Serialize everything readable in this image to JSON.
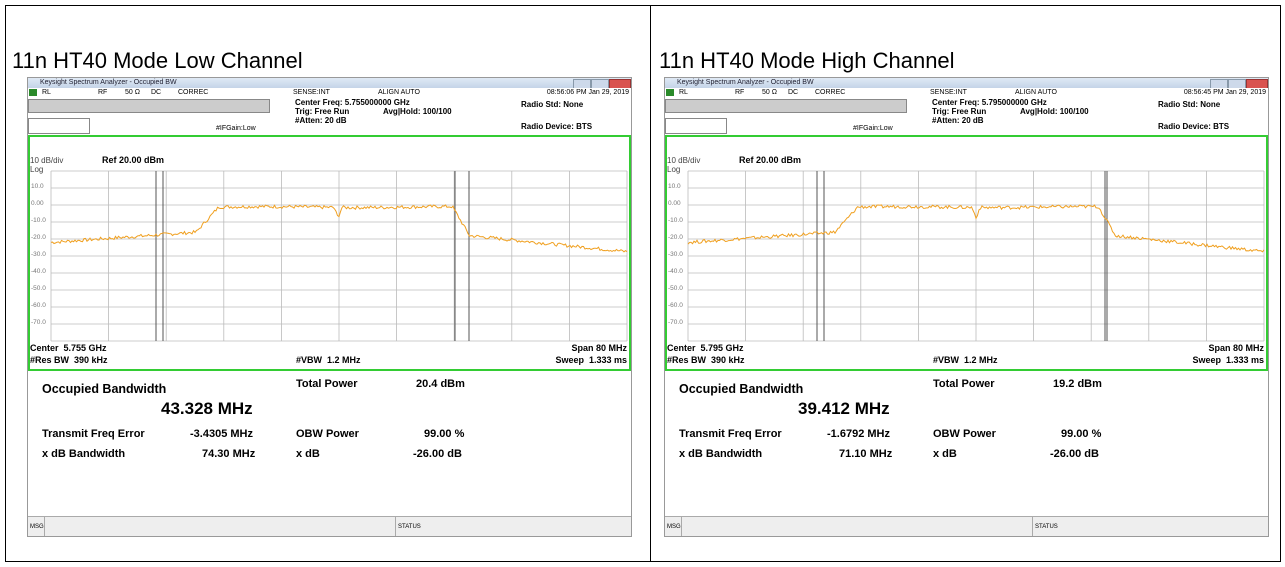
{
  "panels": [
    {
      "caption": "11n HT40 Mode Low Channel",
      "window_title": "Keysight Spectrum Analyzer - Occupied BW",
      "toolbar": [
        "RL",
        "RF",
        "50 Ω",
        "DC",
        "CORREC",
        "SENSE:INT",
        "ALIGN AUTO"
      ],
      "timestamp": "08:56:06 PM Jan 29, 2019",
      "center_freq": "Center Freq: 5.755000000 GHz",
      "trig": "Trig: Free Run",
      "avg": "Avg|Hold: 100/100",
      "atten": "#Atten: 20 dB",
      "ifgain": "#IFGain:Low",
      "radio_std": "Radio Std: None",
      "radio_device": "Radio Device: BTS",
      "scale": "10 dB/div",
      "ref": "Ref 20.00 dBm",
      "log": "Log",
      "y_labels": [
        "10.0",
        "0.00",
        "-10.0",
        "-20.0",
        "-30.0",
        "-40.0",
        "-50.0",
        "-60.0",
        "-70.0"
      ],
      "center": "Center  5.755 GHz",
      "span": "Span 80 MHz",
      "res_bw": "#Res BW  390 kHz",
      "vbw": "#VBW  1.2 MHz",
      "sweep": "Sweep  1.333 ms",
      "obw_label": "Occupied Bandwidth",
      "obw": "43.328 MHz",
      "total_power_label": "Total Power",
      "total_power": "20.4 dBm",
      "tfe_label": "Transmit Freq Error",
      "tfe": "-3.4305 MHz",
      "obw_power_label": "OBW Power",
      "obw_power": "99.00 %",
      "xdb_bw_label": "x dB Bandwidth",
      "xdb_bw": "74.30 MHz",
      "xdb_label": "x dB",
      "xdb": "-26.00 dB",
      "msg": "MSG",
      "status": "STATUS"
    },
    {
      "caption": "11n HT40 Mode High Channel",
      "window_title": "Keysight Spectrum Analyzer - Occupied BW",
      "toolbar": [
        "RL",
        "RF",
        "50 Ω",
        "DC",
        "CORREC",
        "SENSE:INT",
        "ALIGN AUTO"
      ],
      "timestamp": "08:56:45 PM Jan 29, 2019",
      "center_freq": "Center Freq: 5.795000000 GHz",
      "trig": "Trig: Free Run",
      "avg": "Avg|Hold: 100/100",
      "atten": "#Atten: 20 dB",
      "ifgain": "#IFGain:Low",
      "radio_std": "Radio Std: None",
      "radio_device": "Radio Device: BTS",
      "scale": "10 dB/div",
      "ref": "Ref 20.00 dBm",
      "log": "Log",
      "y_labels": [
        "10.0",
        "0.00",
        "-10.0",
        "-20.0",
        "-30.0",
        "-40.0",
        "-50.0",
        "-60.0",
        "-70.0"
      ],
      "center": "Center  5.795 GHz",
      "span": "Span 80 MHz",
      "res_bw": "#Res BW  390 kHz",
      "vbw": "#VBW  1.2 MHz",
      "sweep": "Sweep  1.333 ms",
      "obw_label": "Occupied Bandwidth",
      "obw": "39.412 MHz",
      "total_power_label": "Total Power",
      "total_power": "19.2 dBm",
      "tfe_label": "Transmit Freq Error",
      "tfe": "-1.6792 MHz",
      "obw_power_label": "OBW Power",
      "obw_power": "99.00 %",
      "xdb_bw_label": "x dB Bandwidth",
      "xdb_bw": "71.10 MHz",
      "xdb_label": "x dB",
      "xdb": "-26.00 dB",
      "msg": "MSG",
      "status": "STATUS"
    }
  ]
}
